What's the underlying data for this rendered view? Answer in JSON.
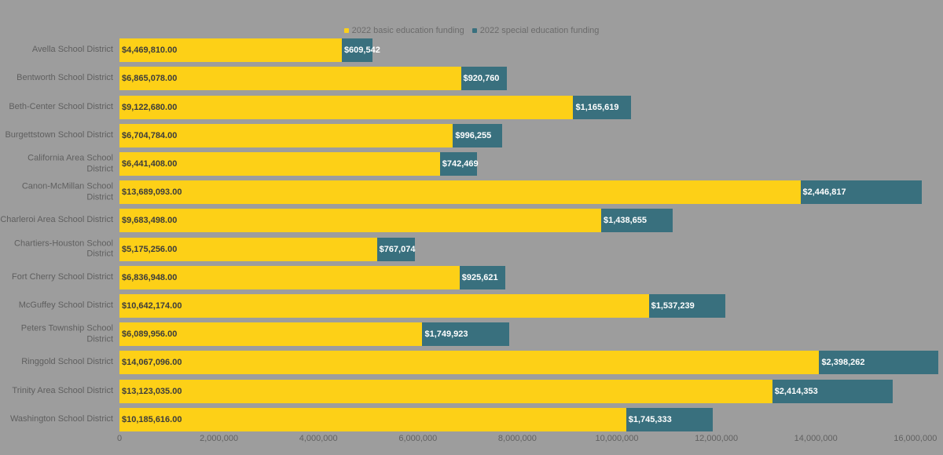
{
  "legend": {
    "items": [
      {
        "label": "2022 basic education funding",
        "color": "#FDD017"
      },
      {
        "label": "2022 special education funding",
        "color": "#39707E"
      }
    ]
  },
  "colors": {
    "background": "#9D9D9D",
    "basic_bar": "#FDD017",
    "special_bar": "#39707E",
    "label_text": "#5f5f5f",
    "value_on_basic": "#3c3c3c",
    "value_on_special": "#ffffff"
  },
  "chart_data": {
    "type": "bar",
    "orientation": "horizontal",
    "stacked": true,
    "title": "",
    "xlabel": "",
    "ylabel": "",
    "xlim": [
      0,
      16000000
    ],
    "grid": false,
    "legend_position": "top-center",
    "categories": [
      "Avella School District",
      "Bentworth School District",
      "Beth-Center School District",
      "Burgettstown School District",
      "California Area School District",
      "Canon-McMillan School District",
      "Charleroi Area School District",
      "Chartiers-Houston School District",
      "Fort Cherry School District",
      "McGuffey School District",
      "Peters Township School District",
      "Ringgold School District",
      "Trinity Area School District",
      "Washington School District"
    ],
    "series": [
      {
        "name": "2022 basic education funding",
        "color": "#FDD017",
        "values": [
          4469810,
          6865078,
          9122680,
          6704784,
          6441408,
          13689093,
          9683498,
          5175256,
          6836948,
          10642174,
          6089956,
          14067096,
          13123035,
          10185616
        ],
        "labels": [
          "$4,469,810.00",
          "$6,865,078.00",
          "$9,122,680.00",
          "$6,704,784.00",
          "$6,441,408.00",
          "$13,689,093.00",
          "$9,683,498.00",
          "$5,175,256.00",
          "$6,836,948.00",
          "$10,642,174.00",
          "$6,089,956.00",
          "$14,067,096.00",
          "$13,123,035.00",
          "$10,185,616.00"
        ]
      },
      {
        "name": "2022 special education funding",
        "color": "#39707E",
        "values": [
          609542,
          920760,
          1165619,
          996255,
          742469,
          2446817,
          1438655,
          767074,
          925621,
          1537239,
          1749923,
          2398262,
          2414353,
          1745333
        ],
        "labels": [
          "$609,542",
          "$920,760",
          "$1,165,619",
          "$996,255",
          "$742,469",
          "$2,446,817",
          "$1,438,655",
          "$767,074",
          "$925,621",
          "$1,537,239",
          "$1,749,923",
          "$2,398,262",
          "$2,414,353",
          "$1,745,333"
        ]
      }
    ],
    "x_ticks": [
      {
        "value": 0,
        "label": "0"
      },
      {
        "value": 2000000,
        "label": "2,000,000"
      },
      {
        "value": 4000000,
        "label": "4,000,000"
      },
      {
        "value": 6000000,
        "label": "6,000,000"
      },
      {
        "value": 8000000,
        "label": "8,000,000"
      },
      {
        "value": 10000000,
        "label": "10,000,000"
      },
      {
        "value": 12000000,
        "label": "12,000,000"
      },
      {
        "value": 14000000,
        "label": "14,000,000"
      },
      {
        "value": 16000000,
        "label": "16,000,000"
      }
    ]
  }
}
